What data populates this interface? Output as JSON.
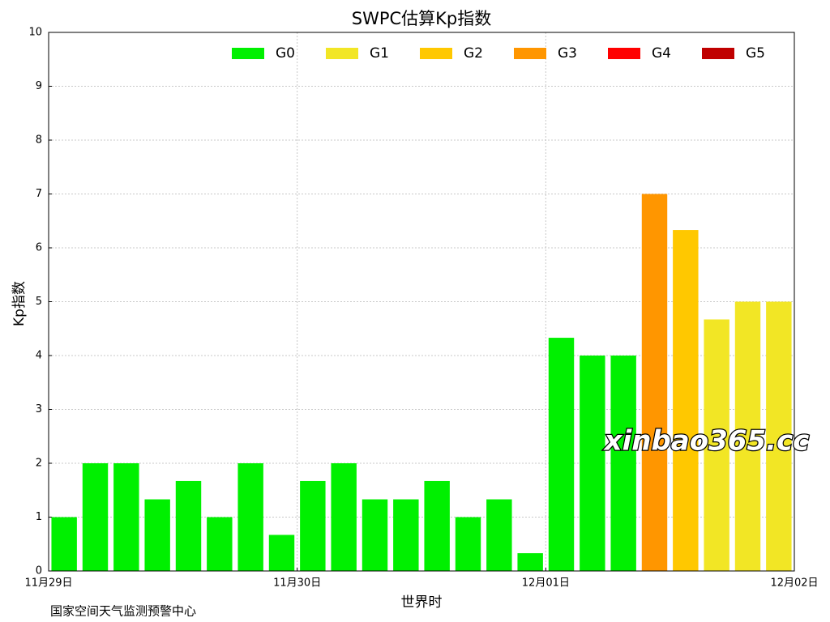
{
  "chart_data": {
    "type": "bar",
    "title": "SWPC估算Kp指数",
    "x_label": "世界时",
    "y_label": "Kp指数",
    "source": "国家空间天气监测预警中心",
    "watermark": "xinbao365.cc",
    "categories": [
      null,
      null,
      null,
      null,
      null,
      null,
      null,
      null,
      null,
      null,
      null,
      null,
      null,
      null,
      null,
      null,
      null,
      null,
      null,
      null,
      null,
      null,
      null,
      null
    ],
    "xlim": [
      0,
      24
    ],
    "xticks": [
      {
        "value": 0,
        "label": "11月29日"
      },
      {
        "value": 8,
        "label": "11月30日"
      },
      {
        "value": 16,
        "label": "12月01日"
      },
      {
        "value": 24,
        "label": "12月02日"
      }
    ],
    "ylim": [
      0,
      10
    ],
    "yticks": [
      0,
      1,
      2,
      3,
      4,
      5,
      6,
      7,
      8,
      9,
      10
    ],
    "grid": true,
    "legend": "upper right",
    "series": [
      {
        "name": "G0",
        "color": "#00f000",
        "values": [
          1,
          2,
          2,
          1.33,
          1.67,
          1,
          2,
          0.67,
          1.67,
          2,
          1.33,
          1.33,
          1.67,
          1,
          1.33,
          0.33,
          4.33,
          4,
          4,
          null,
          null,
          null,
          null,
          null
        ]
      },
      {
        "name": "G1",
        "color": "#f2e625",
        "values": [
          null,
          null,
          null,
          null,
          null,
          null,
          null,
          null,
          null,
          null,
          null,
          null,
          null,
          null,
          null,
          null,
          null,
          null,
          null,
          null,
          null,
          4.67,
          5,
          5
        ]
      },
      {
        "name": "G2",
        "color": "#ffc800",
        "values": [
          null,
          null,
          null,
          null,
          null,
          null,
          null,
          null,
          null,
          null,
          null,
          null,
          null,
          null,
          null,
          null,
          null,
          null,
          null,
          null,
          6.33,
          null,
          null,
          null
        ]
      },
      {
        "name": "G3",
        "color": "#ff9600",
        "values": [
          null,
          null,
          null,
          null,
          null,
          null,
          null,
          null,
          null,
          null,
          null,
          null,
          null,
          null,
          null,
          null,
          null,
          null,
          null,
          7,
          null,
          null,
          null,
          null
        ]
      },
      {
        "name": "G4",
        "color": "#ff0000",
        "values": [
          null,
          null,
          null,
          null,
          null,
          null,
          null,
          null,
          null,
          null,
          null,
          null,
          null,
          null,
          null,
          null,
          null,
          null,
          null,
          null,
          null,
          null,
          null,
          null
        ]
      },
      {
        "name": "G5",
        "color": "#c00000",
        "values": [
          null,
          null,
          null,
          null,
          null,
          null,
          null,
          null,
          null,
          null,
          null,
          null,
          null,
          null,
          null,
          null,
          null,
          null,
          null,
          null,
          null,
          null,
          null,
          null
        ]
      }
    ]
  }
}
